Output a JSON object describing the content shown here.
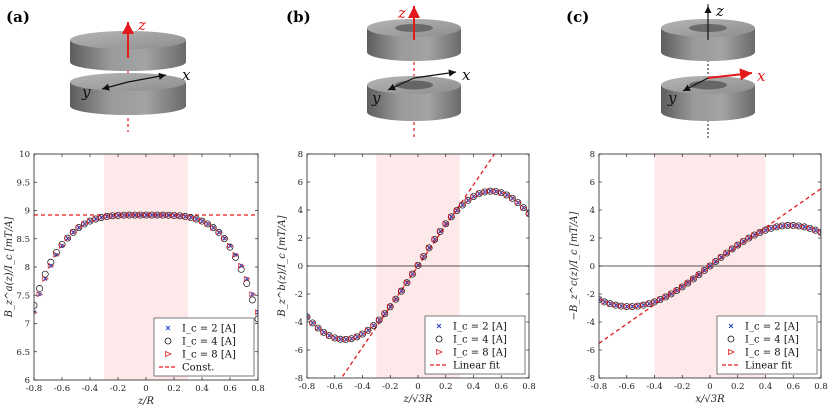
{
  "panel_labels": [
    "(a)",
    "(b)",
    "(c)"
  ],
  "diagram_axes": {
    "a": {
      "z": "z",
      "x": "x",
      "y": "y"
    },
    "b": {
      "z": "z",
      "x": "x",
      "y": "y"
    },
    "c": {
      "z": "z",
      "x": "x",
      "y": "y"
    }
  },
  "colors": {
    "red": "#e31a1c",
    "blue": "#1f3fbf",
    "black": "#111111",
    "shade": "#fde8ea",
    "coil": "#8c8c8c"
  },
  "chart_data": [
    {
      "type": "scatter",
      "title": "",
      "xlabel": "z/R",
      "ylabel": "B_z^a(z)/I_c [mT/A]",
      "xlim": [
        -0.8,
        0.8
      ],
      "ylim": [
        6,
        10
      ],
      "xticks": [
        "-0.8",
        "-0.6",
        "-0.4",
        "-0.2",
        "0",
        "0.2",
        "0.4",
        "0.6",
        "0.8"
      ],
      "yticks": [
        "6",
        "6.5",
        "7",
        "7.5",
        "8",
        "8.5",
        "9",
        "9.5",
        "10"
      ],
      "shaded_region": [
        -0.3,
        0.3
      ],
      "model": {
        "kind": "flat",
        "center": 8.92,
        "curvature": 4.2
      },
      "reference_line": {
        "kind": "const",
        "value": 8.92
      },
      "zero_line": false,
      "legend": [
        "I_c = 2 [A]",
        "I_c = 4 [A]",
        "I_c = 8 [A]",
        "Const."
      ],
      "legend_position": "bottom-right"
    },
    {
      "type": "scatter",
      "title": "",
      "xlabel": "z/√3R",
      "ylabel": "B_z^b(z)/I_c [mT/A]",
      "xlim": [
        -0.8,
        0.8
      ],
      "ylim": [
        -8,
        8
      ],
      "xticks": [
        "-0.8",
        "-0.6",
        "-0.4",
        "-0.2",
        "0",
        "0.2",
        "0.4",
        "0.6",
        "0.8"
      ],
      "yticks": [
        "-8",
        "-6",
        "-4",
        "-2",
        "0",
        "2",
        "4",
        "6",
        "8"
      ],
      "shaded_region": [
        -0.3,
        0.3
      ],
      "model": {
        "kind": "sine",
        "amplitude": 5.3,
        "peak_at": 0.53,
        "offset": 0.05
      },
      "reference_line": {
        "kind": "linear",
        "slope": 14.5,
        "intercept": 0.0
      },
      "zero_line": true,
      "legend": [
        "I_c = 2 [A]",
        "I_c = 4 [A]",
        "I_c = 8 [A]",
        "Linear fit"
      ],
      "legend_position": "bottom-right"
    },
    {
      "type": "scatter",
      "title": "",
      "xlabel": "x/√3R",
      "ylabel": "−B_z^c(z)/I_c [mT/A]",
      "xlim": [
        -0.8,
        0.8
      ],
      "ylim": [
        -8,
        8
      ],
      "xticks": [
        "-0.8",
        "-0.6",
        "-0.4",
        "-0.2",
        "0",
        "0.2",
        "0.4",
        "0.6",
        "0.8"
      ],
      "yticks": [
        "-8",
        "-6",
        "-4",
        "-2",
        "0",
        "2",
        "4",
        "6",
        "8"
      ],
      "shaded_region": [
        -0.4,
        0.4
      ],
      "model": {
        "kind": "sine",
        "amplitude": 2.9,
        "peak_at": 0.58,
        "offset": 0.0
      },
      "reference_line": {
        "kind": "linear",
        "slope": 6.9,
        "intercept": 0.0
      },
      "zero_line": true,
      "legend": [
        "I_c = 2 [A]",
        "I_c = 4 [A]",
        "I_c = 8 [A]",
        "Linear fit"
      ],
      "legend_position": "bottom-right"
    }
  ]
}
